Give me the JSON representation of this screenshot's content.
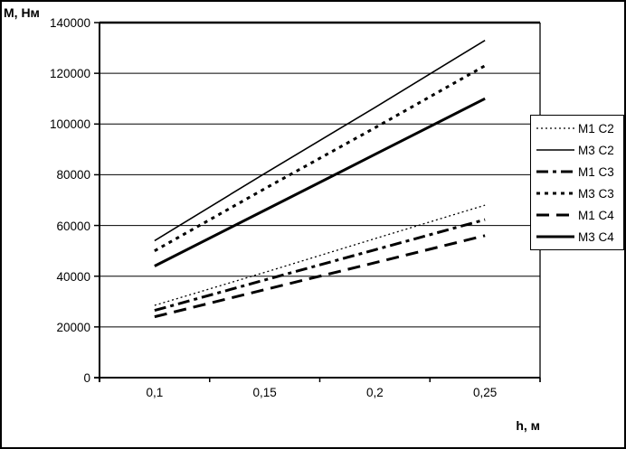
{
  "chart_data": {
    "type": "line",
    "title": "",
    "ylabel": "М, Нм",
    "xlabel": "h, м",
    "categories": [
      "0,1",
      "0,15",
      "0,2",
      "0,25"
    ],
    "x_values": [
      0.1,
      0.15,
      0.2,
      0.25
    ],
    "ylim": [
      0,
      140000
    ],
    "ytick_step": 20000,
    "y_tick_labels": [
      "0",
      "20000",
      "40000",
      "60000",
      "80000",
      "100000",
      "120000",
      "140000"
    ],
    "grid": "horizontal gridlines every 20000, top gridline (140000) bold",
    "legend_position": "right, boxed",
    "line_color": "#000000",
    "background_color": "#ffffff",
    "series": [
      {
        "name": "M1 C2",
        "values": [
          28500,
          41500,
          54800,
          68000
        ],
        "line": {
          "width": 1.3,
          "dash": "2 3"
        }
      },
      {
        "name": "M3 C2",
        "values": [
          54000,
          80500,
          106500,
          133000
        ],
        "line": {
          "width": 1.6,
          "dash": ""
        }
      },
      {
        "name": "M1 C3",
        "values": [
          26500,
          38500,
          50400,
          62300
        ],
        "line": {
          "width": 3,
          "dash": "13 5 4 5"
        }
      },
      {
        "name": "M3 C3",
        "values": [
          50000,
          74500,
          98500,
          123000
        ],
        "line": {
          "width": 3,
          "dash": "4 5"
        }
      },
      {
        "name": "M1 C4",
        "values": [
          24000,
          34700,
          45300,
          56000
        ],
        "line": {
          "width": 3,
          "dash": "14 8"
        }
      },
      {
        "name": "M3 C4",
        "values": [
          44000,
          66000,
          88000,
          110000
        ],
        "line": {
          "width": 3,
          "dash": ""
        }
      }
    ]
  }
}
